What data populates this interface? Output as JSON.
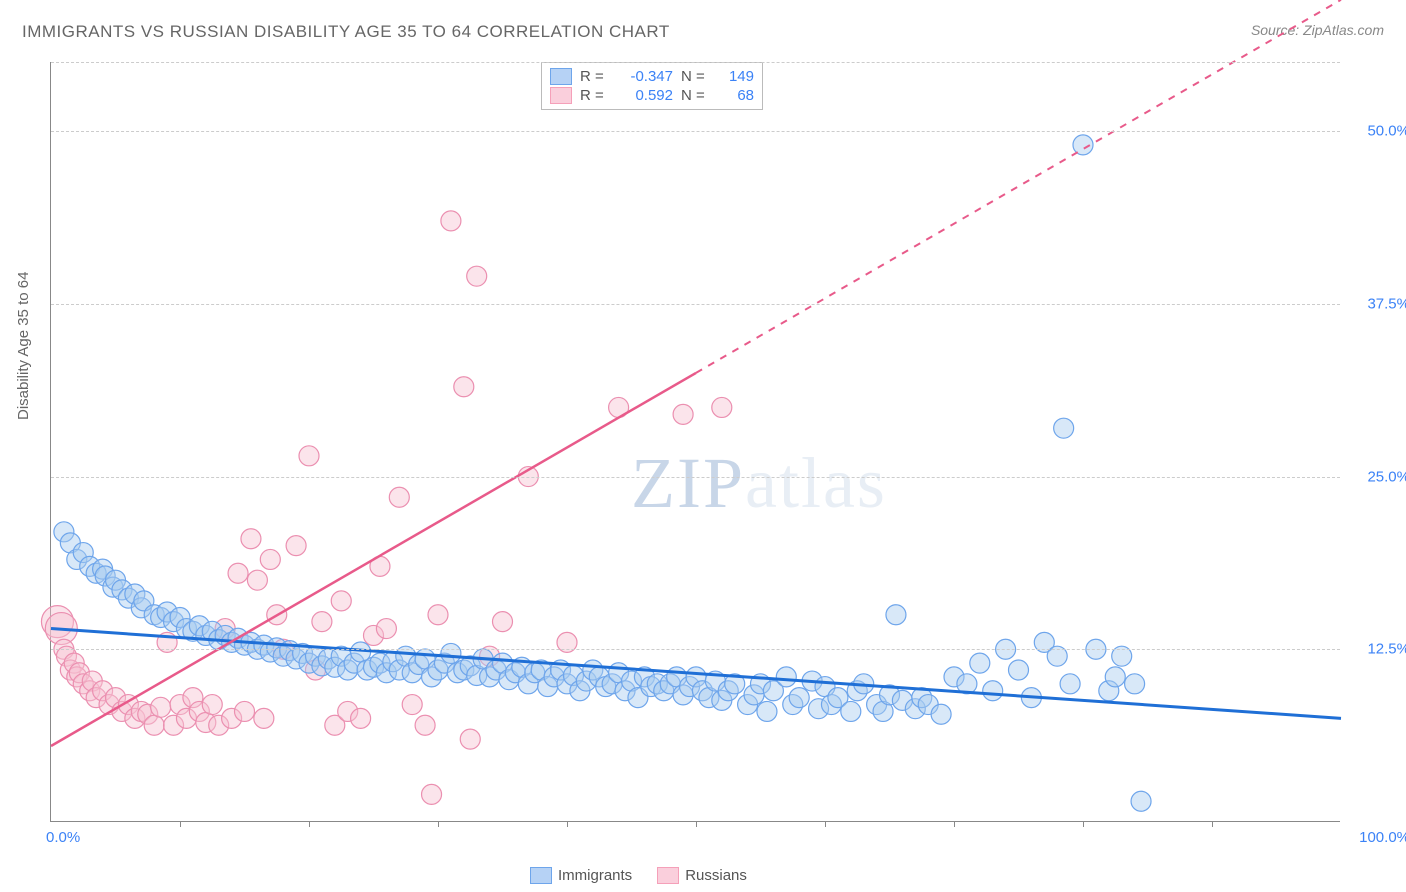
{
  "chart": {
    "type": "scatter",
    "title": "IMMIGRANTS VS RUSSIAN DISABILITY AGE 35 TO 64 CORRELATION CHART",
    "source": "Source: ZipAtlas.com",
    "watermark_text_1": "ZIP",
    "watermark_text_2": "atlas",
    "y_axis_label": "Disability Age 35 to 64",
    "xlim": [
      0,
      100
    ],
    "ylim": [
      0,
      55
    ],
    "x_tick_labels": [
      "0.0%",
      "100.0%"
    ],
    "y_tick_labels": [
      "12.5%",
      "25.0%",
      "37.5%",
      "50.0%"
    ],
    "y_tick_values": [
      12.5,
      25.0,
      37.5,
      50.0
    ],
    "x_minor_ticks": [
      10,
      20,
      30,
      40,
      50,
      60,
      70,
      80,
      90
    ],
    "background_color": "#ffffff",
    "grid_color": "#cccccc",
    "axis_color": "#888888",
    "marker_radius": 10,
    "marker_radius_large": 16,
    "marker_opacity": 0.45,
    "marker_stroke_width": 1.2
  },
  "series": {
    "immigrants": {
      "label": "Immigrants",
      "color_fill": "#a9cbf0",
      "color_stroke": "#6ea5eb",
      "trend_color": "#1f6fd6",
      "trend_style": "solid",
      "trend_from": [
        0,
        14.0
      ],
      "trend_to": [
        100,
        7.5
      ],
      "R": "-0.347",
      "N": "149",
      "points": [
        [
          1.0,
          21.0
        ],
        [
          1.5,
          20.2
        ],
        [
          2.0,
          19.0
        ],
        [
          2.5,
          19.5
        ],
        [
          3.0,
          18.5
        ],
        [
          3.5,
          18.0
        ],
        [
          4.0,
          18.3
        ],
        [
          4.2,
          17.8
        ],
        [
          4.8,
          17.0
        ],
        [
          5.0,
          17.5
        ],
        [
          5.5,
          16.8
        ],
        [
          6.0,
          16.2
        ],
        [
          6.5,
          16.5
        ],
        [
          7.0,
          15.5
        ],
        [
          7.2,
          16.0
        ],
        [
          8.0,
          15.0
        ],
        [
          8.5,
          14.8
        ],
        [
          9.0,
          15.2
        ],
        [
          9.5,
          14.5
        ],
        [
          10.0,
          14.8
        ],
        [
          10.5,
          14.0
        ],
        [
          11.0,
          13.8
        ],
        [
          11.5,
          14.2
        ],
        [
          12.0,
          13.5
        ],
        [
          12.5,
          13.8
        ],
        [
          13.0,
          13.2
        ],
        [
          13.5,
          13.5
        ],
        [
          14.0,
          13.0
        ],
        [
          14.5,
          13.3
        ],
        [
          15.0,
          12.8
        ],
        [
          15.5,
          13.0
        ],
        [
          16.0,
          12.5
        ],
        [
          16.5,
          12.8
        ],
        [
          17.0,
          12.3
        ],
        [
          17.5,
          12.6
        ],
        [
          18.0,
          12.0
        ],
        [
          18.5,
          12.4
        ],
        [
          19.0,
          11.8
        ],
        [
          19.5,
          12.2
        ],
        [
          20.0,
          11.5
        ],
        [
          20.5,
          12.0
        ],
        [
          21.0,
          11.3
        ],
        [
          21.5,
          11.8
        ],
        [
          22.0,
          11.2
        ],
        [
          22.5,
          12.0
        ],
        [
          23.0,
          11.0
        ],
        [
          23.5,
          11.5
        ],
        [
          24.0,
          12.3
        ],
        [
          24.5,
          11.0
        ],
        [
          25.0,
          11.2
        ],
        [
          25.5,
          11.5
        ],
        [
          26.0,
          10.8
        ],
        [
          26.5,
          11.6
        ],
        [
          27.0,
          11.0
        ],
        [
          27.5,
          12.0
        ],
        [
          28.0,
          10.8
        ],
        [
          28.5,
          11.4
        ],
        [
          29.0,
          11.8
        ],
        [
          29.5,
          10.5
        ],
        [
          30.0,
          11.0
        ],
        [
          30.5,
          11.5
        ],
        [
          31.0,
          12.2
        ],
        [
          31.5,
          10.8
        ],
        [
          32.0,
          11.0
        ],
        [
          32.5,
          11.3
        ],
        [
          33.0,
          10.6
        ],
        [
          33.5,
          11.8
        ],
        [
          34.0,
          10.5
        ],
        [
          34.5,
          11.0
        ],
        [
          35.0,
          11.5
        ],
        [
          35.5,
          10.3
        ],
        [
          36.0,
          10.8
        ],
        [
          36.5,
          11.2
        ],
        [
          37.0,
          10.0
        ],
        [
          37.5,
          10.8
        ],
        [
          38.0,
          11.0
        ],
        [
          38.5,
          9.8
        ],
        [
          39.0,
          10.5
        ],
        [
          39.5,
          11.0
        ],
        [
          40.0,
          10.0
        ],
        [
          40.5,
          10.6
        ],
        [
          41.0,
          9.5
        ],
        [
          41.5,
          10.2
        ],
        [
          42.0,
          11.0
        ],
        [
          42.5,
          10.5
        ],
        [
          43.0,
          9.8
        ],
        [
          43.5,
          10.0
        ],
        [
          44.0,
          10.8
        ],
        [
          44.5,
          9.5
        ],
        [
          45.0,
          10.2
        ],
        [
          45.5,
          9.0
        ],
        [
          46.0,
          10.5
        ],
        [
          46.5,
          9.8
        ],
        [
          47.0,
          10.0
        ],
        [
          47.5,
          9.5
        ],
        [
          48.0,
          10.0
        ],
        [
          48.5,
          10.5
        ],
        [
          49.0,
          9.2
        ],
        [
          49.5,
          9.8
        ],
        [
          50.0,
          10.5
        ],
        [
          50.5,
          9.5
        ],
        [
          51.0,
          9.0
        ],
        [
          51.5,
          10.2
        ],
        [
          52.0,
          8.8
        ],
        [
          52.5,
          9.5
        ],
        [
          53.0,
          10.0
        ],
        [
          54.0,
          8.5
        ],
        [
          54.5,
          9.2
        ],
        [
          55.0,
          10.0
        ],
        [
          55.5,
          8.0
        ],
        [
          56.0,
          9.5
        ],
        [
          57.0,
          10.5
        ],
        [
          57.5,
          8.5
        ],
        [
          58.0,
          9.0
        ],
        [
          59.0,
          10.2
        ],
        [
          59.5,
          8.2
        ],
        [
          60.0,
          9.8
        ],
        [
          60.5,
          8.5
        ],
        [
          61.0,
          9.0
        ],
        [
          62.0,
          8.0
        ],
        [
          62.5,
          9.5
        ],
        [
          63.0,
          10.0
        ],
        [
          64.0,
          8.5
        ],
        [
          64.5,
          8.0
        ],
        [
          65.0,
          9.2
        ],
        [
          65.5,
          15.0
        ],
        [
          66.0,
          8.8
        ],
        [
          67.0,
          8.2
        ],
        [
          67.5,
          9.0
        ],
        [
          68.0,
          8.5
        ],
        [
          69.0,
          7.8
        ],
        [
          70.0,
          10.5
        ],
        [
          71.0,
          10.0
        ],
        [
          72.0,
          11.5
        ],
        [
          73.0,
          9.5
        ],
        [
          74.0,
          12.5
        ],
        [
          75.0,
          11.0
        ],
        [
          76.0,
          9.0
        ],
        [
          77.0,
          13.0
        ],
        [
          78.0,
          12.0
        ],
        [
          78.5,
          28.5
        ],
        [
          79.0,
          10.0
        ],
        [
          80.0,
          49.0
        ],
        [
          81.0,
          12.5
        ],
        [
          82.0,
          9.5
        ],
        [
          82.5,
          10.5
        ],
        [
          83.0,
          12.0
        ],
        [
          84.0,
          10.0
        ],
        [
          84.5,
          1.5
        ]
      ]
    },
    "russians": {
      "label": "Russians",
      "color_fill": "#f6c4d3",
      "color_stroke": "#eb8fb0",
      "trend_color": "#e85a8a",
      "trend_style": "solid_then_dashed",
      "trend_from": [
        0,
        5.5
      ],
      "trend_solid_to": [
        50,
        32.5
      ],
      "trend_dash_to": [
        100,
        59.5
      ],
      "R": "0.592",
      "N": "68",
      "points": [
        [
          0.5,
          14.5,
          "large"
        ],
        [
          0.8,
          14.0,
          "large"
        ],
        [
          1.0,
          12.5
        ],
        [
          1.2,
          12.0
        ],
        [
          1.5,
          11.0
        ],
        [
          1.8,
          11.5
        ],
        [
          2.0,
          10.5
        ],
        [
          2.2,
          10.8
        ],
        [
          2.5,
          10.0
        ],
        [
          3.0,
          9.5
        ],
        [
          3.2,
          10.2
        ],
        [
          3.5,
          9.0
        ],
        [
          4.0,
          9.5
        ],
        [
          4.5,
          8.5
        ],
        [
          5.0,
          9.0
        ],
        [
          5.5,
          8.0
        ],
        [
          6.0,
          8.5
        ],
        [
          6.5,
          7.5
        ],
        [
          7.0,
          8.0
        ],
        [
          7.5,
          7.8
        ],
        [
          8.0,
          7.0
        ],
        [
          8.5,
          8.3
        ],
        [
          9.0,
          13.0
        ],
        [
          9.5,
          7.0
        ],
        [
          10.0,
          8.5
        ],
        [
          10.5,
          7.5
        ],
        [
          11.0,
          9.0
        ],
        [
          11.5,
          8.0
        ],
        [
          12.0,
          7.2
        ],
        [
          12.5,
          8.5
        ],
        [
          13.0,
          7.0
        ],
        [
          13.5,
          14.0
        ],
        [
          14.0,
          7.5
        ],
        [
          14.5,
          18.0
        ],
        [
          15.0,
          8.0
        ],
        [
          15.5,
          20.5
        ],
        [
          16.0,
          17.5
        ],
        [
          16.5,
          7.5
        ],
        [
          17.0,
          19.0
        ],
        [
          17.5,
          15.0
        ],
        [
          18.0,
          12.5
        ],
        [
          19.0,
          20.0
        ],
        [
          20.0,
          26.5
        ],
        [
          20.5,
          11.0
        ],
        [
          21.0,
          14.5
        ],
        [
          22.0,
          7.0
        ],
        [
          22.5,
          16.0
        ],
        [
          23.0,
          8.0
        ],
        [
          24.0,
          7.5
        ],
        [
          25.0,
          13.5
        ],
        [
          25.5,
          18.5
        ],
        [
          26.0,
          14.0
        ],
        [
          27.0,
          23.5
        ],
        [
          28.0,
          8.5
        ],
        [
          29.0,
          7.0
        ],
        [
          29.5,
          2.0
        ],
        [
          30.0,
          15.0
        ],
        [
          31.0,
          43.5
        ],
        [
          32.0,
          31.5
        ],
        [
          32.5,
          6.0
        ],
        [
          33.0,
          39.5
        ],
        [
          34.0,
          12.0
        ],
        [
          35.0,
          14.5
        ],
        [
          37.0,
          25.0
        ],
        [
          40.0,
          13.0
        ],
        [
          44.0,
          30.0
        ],
        [
          49.0,
          29.5
        ],
        [
          52.0,
          30.0
        ]
      ]
    }
  },
  "legend": {
    "items": [
      "Immigrants",
      "Russians"
    ]
  }
}
